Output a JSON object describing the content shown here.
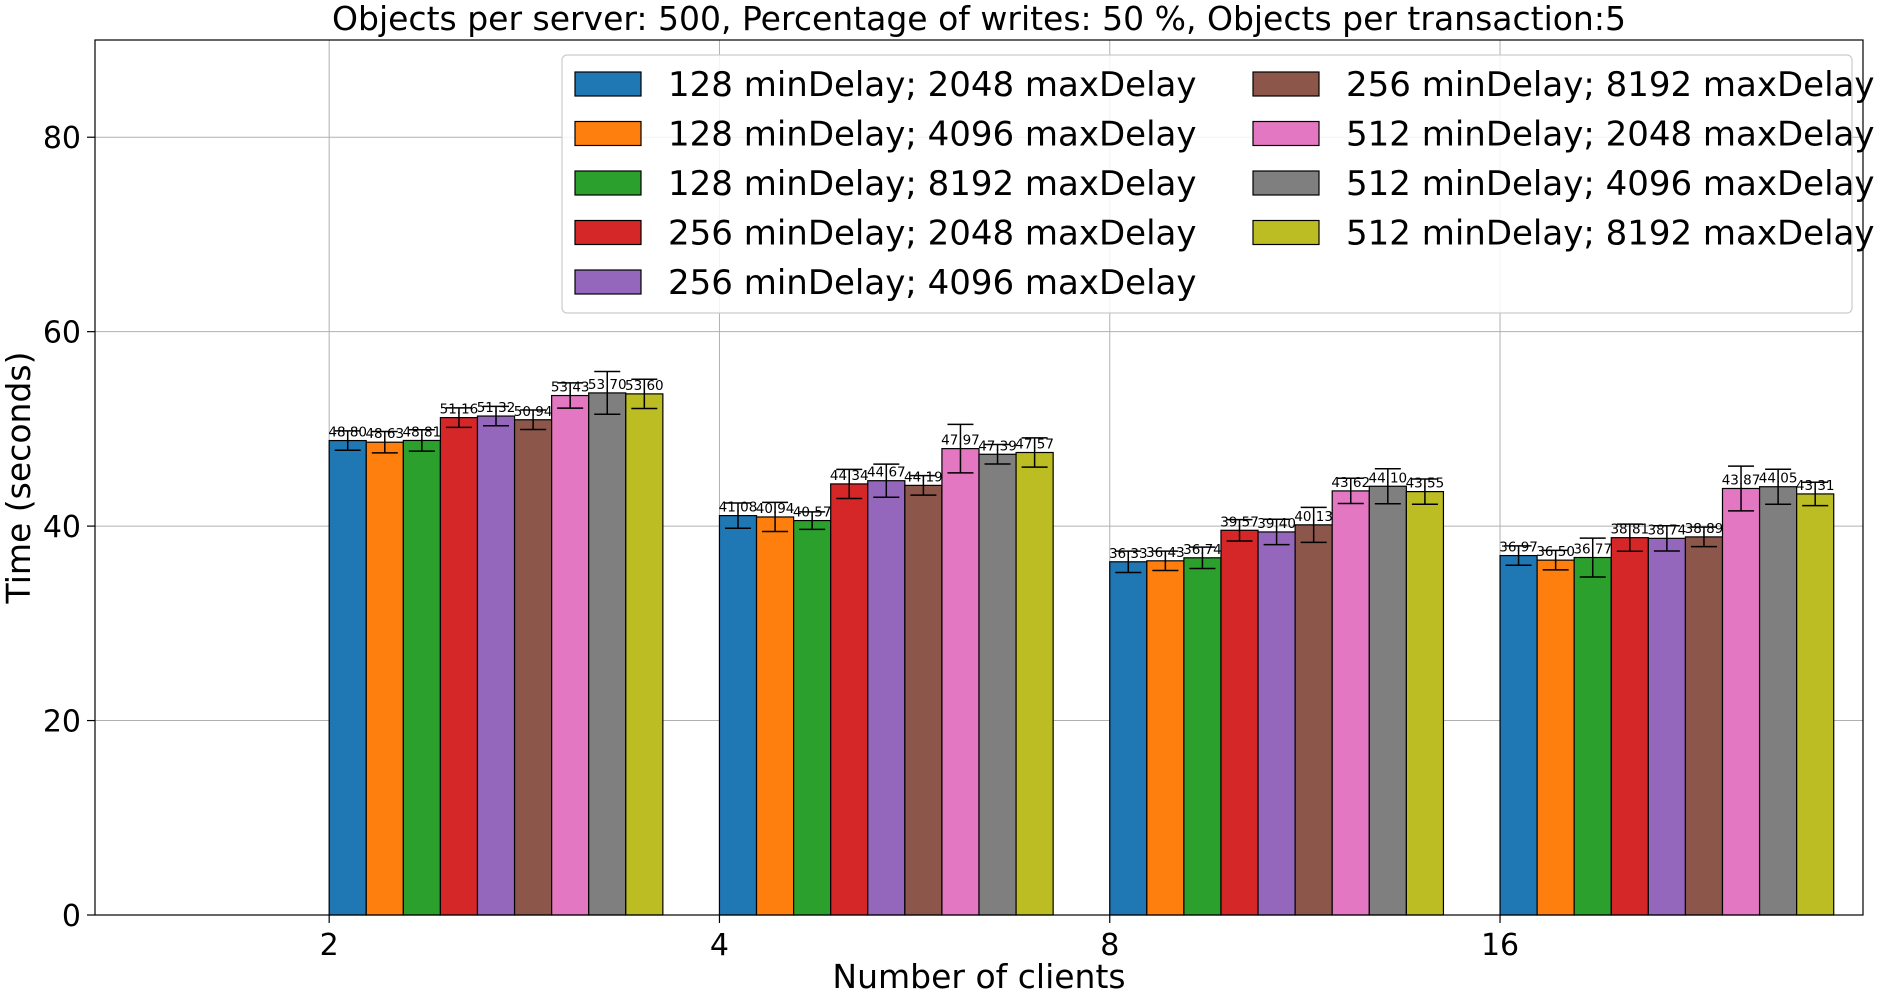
{
  "chart_data": {
    "type": "bar",
    "title": "Objects per server: 500, Percentage of writes: 50 %, Objects per transaction:5",
    "xlabel": "Number of clients",
    "ylabel": "Time (seconds)",
    "ylim": [
      0,
      90
    ],
    "yticks": [
      0,
      20,
      40,
      60,
      80
    ],
    "grid": true,
    "legend_position": "top-right",
    "legend_columns": 2,
    "categories": [
      "2",
      "4",
      "8",
      "16"
    ],
    "series": [
      {
        "name": "128 minDelay; 2048 maxDelay",
        "color": "#1f77b4",
        "values": [
          48.8,
          41.08,
          36.33,
          36.97
        ],
        "labels": [
          "48.80",
          "41.08",
          "36.33",
          "36.97"
        ],
        "errors": [
          1.0,
          1.3,
          1.1,
          1.0
        ]
      },
      {
        "name": "128 minDelay; 4096 maxDelay",
        "color": "#ff7f0e",
        "values": [
          48.63,
          40.94,
          36.43,
          36.5
        ],
        "labels": [
          "48.63",
          "40.94",
          "36.43",
          "36.50"
        ],
        "errors": [
          1.1,
          1.5,
          1.0,
          1.0
        ]
      },
      {
        "name": "128 minDelay; 8192 maxDelay",
        "color": "#2ca02c",
        "values": [
          48.81,
          40.57,
          36.74,
          36.77
        ],
        "labels": [
          "48.81",
          "40.57",
          "36.74",
          "36.77"
        ],
        "errors": [
          1.1,
          0.9,
          1.1,
          2.0
        ]
      },
      {
        "name": "256 minDelay; 2048 maxDelay",
        "color": "#d62728",
        "values": [
          51.16,
          44.34,
          39.57,
          38.81
        ],
        "labels": [
          "51.16",
          "44.34",
          "39.57",
          "38.81"
        ],
        "errors": [
          1.0,
          1.5,
          1.1,
          1.4
        ]
      },
      {
        "name": "256 minDelay; 4096 maxDelay",
        "color": "#9467bd",
        "values": [
          51.32,
          44.67,
          39.4,
          38.74
        ],
        "labels": [
          "51.32",
          "44.67",
          "39.40",
          "38.74"
        ],
        "errors": [
          1.0,
          1.7,
          1.3,
          1.3
        ]
      },
      {
        "name": "256 minDelay; 8192 maxDelay",
        "color": "#8c564b",
        "values": [
          50.94,
          44.19,
          40.13,
          38.89
        ],
        "labels": [
          "50.94",
          "44.19",
          "40.13",
          "38.89"
        ],
        "errors": [
          1.0,
          1.0,
          1.8,
          1.0
        ]
      },
      {
        "name": "512 minDelay; 2048 maxDelay",
        "color": "#e377c2",
        "values": [
          53.43,
          47.97,
          43.62,
          43.87
        ],
        "labels": [
          "53.43",
          "47.97",
          "43.62",
          "43.87"
        ],
        "errors": [
          1.3,
          2.5,
          1.3,
          2.3
        ]
      },
      {
        "name": "512 minDelay; 4096 maxDelay",
        "color": "#7f7f7f",
        "values": [
          53.7,
          47.39,
          44.1,
          44.05
        ],
        "labels": [
          "53.70",
          "47.39",
          "44.10",
          "44.05"
        ],
        "errors": [
          2.2,
          1.0,
          1.8,
          1.8
        ]
      },
      {
        "name": "512 minDelay; 8192 maxDelay",
        "color": "#bcbd22",
        "values": [
          53.6,
          47.57,
          43.55,
          43.31
        ],
        "labels": [
          "53.60",
          "47.57",
          "43.55",
          "43.31"
        ],
        "errors": [
          1.5,
          1.5,
          1.3,
          1.2
        ]
      }
    ]
  }
}
